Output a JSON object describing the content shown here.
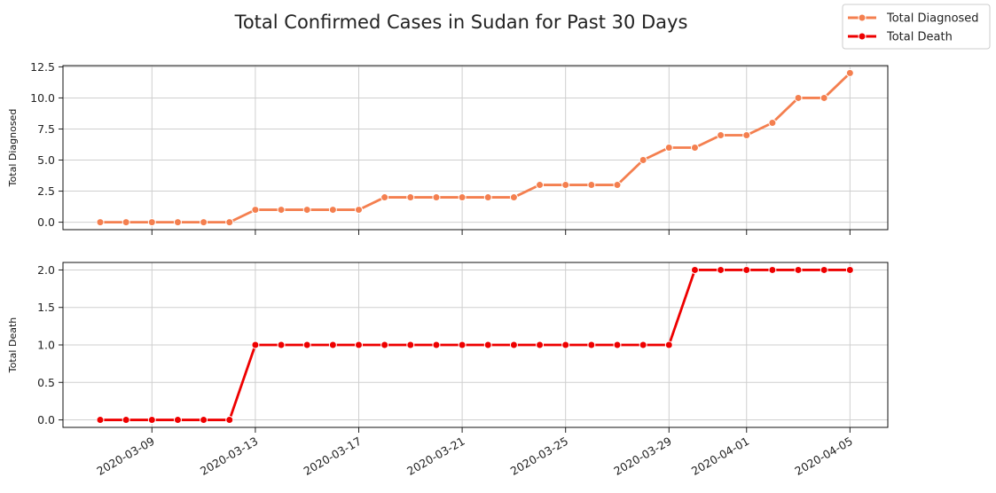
{
  "chart_data": {
    "type": "line",
    "title": "Total Confirmed Cases in Sudan for Past 30 Days",
    "x": [
      "2020-03-07",
      "2020-03-08",
      "2020-03-09",
      "2020-03-10",
      "2020-03-11",
      "2020-03-12",
      "2020-03-13",
      "2020-03-14",
      "2020-03-15",
      "2020-03-16",
      "2020-03-17",
      "2020-03-18",
      "2020-03-19",
      "2020-03-20",
      "2020-03-21",
      "2020-03-22",
      "2020-03-23",
      "2020-03-24",
      "2020-03-25",
      "2020-03-26",
      "2020-03-27",
      "2020-03-28",
      "2020-03-29",
      "2020-03-30",
      "2020-03-31",
      "2020-04-01",
      "2020-04-02",
      "2020-04-03",
      "2020-04-04",
      "2020-04-05"
    ],
    "x_ticks": [
      "2020-03-09",
      "2020-03-13",
      "2020-03-17",
      "2020-03-21",
      "2020-03-25",
      "2020-03-29",
      "2020-04-01",
      "2020-04-05"
    ],
    "grid": true,
    "legend_position": "top-right (figure)",
    "panels": [
      {
        "ylabel": "Total Diagnosed",
        "series_name": "Total Diagnosed",
        "color": "#f47f4f",
        "ylim": [
          -0.6,
          12.6
        ],
        "y_ticks": [
          "0.0",
          "2.5",
          "5.0",
          "7.5",
          "10.0",
          "12.5"
        ],
        "y_tick_values": [
          0,
          2.5,
          5,
          7.5,
          10,
          12.5
        ],
        "values": [
          0,
          0,
          0,
          0,
          0,
          0,
          1,
          1,
          1,
          1,
          1,
          2,
          2,
          2,
          2,
          2,
          2,
          3,
          3,
          3,
          3,
          5,
          6,
          6,
          7,
          7,
          8,
          10,
          10,
          12
        ]
      },
      {
        "ylabel": "Total Death",
        "series_name": "Total Death",
        "color": "#ee0000",
        "ylim": [
          -0.1,
          2.1
        ],
        "y_ticks": [
          "0.0",
          "0.5",
          "1.0",
          "1.5",
          "2.0"
        ],
        "y_tick_values": [
          0,
          0.5,
          1,
          1.5,
          2
        ],
        "values": [
          0,
          0,
          0,
          0,
          0,
          0,
          1,
          1,
          1,
          1,
          1,
          1,
          1,
          1,
          1,
          1,
          1,
          1,
          1,
          1,
          1,
          1,
          1,
          2,
          2,
          2,
          2,
          2,
          2,
          2
        ]
      }
    ]
  }
}
